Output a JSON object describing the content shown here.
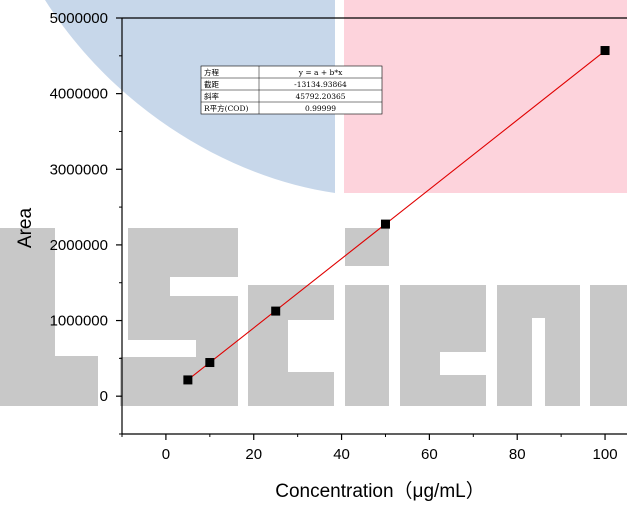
{
  "chart_data": {
    "type": "scatter",
    "xlabel": "Concentration（μg/mL）",
    "ylabel": "Area",
    "xlim": [
      -10,
      105
    ],
    "ylim": [
      -500000,
      5000000
    ],
    "x_ticks": [
      0,
      20,
      40,
      60,
      80,
      100
    ],
    "y_ticks": [
      0,
      1000000,
      2000000,
      3000000,
      4000000,
      5000000
    ],
    "x_tick_labels": [
      "0",
      "20",
      "40",
      "60",
      "80",
      "100"
    ],
    "y_tick_labels": [
      "0",
      "1000000",
      "2000000",
      "3000000",
      "4000000",
      "5000000"
    ],
    "grid": false,
    "series": [
      {
        "x": [
          5,
          10,
          25,
          50,
          100
        ],
        "y": [
          215000,
          445000,
          1125000,
          2275000,
          4570000
        ],
        "marker": "square",
        "marker_color": "#000000"
      }
    ],
    "fit_line": {
      "intercept": -13134.93864,
      "slope": 45792.20365,
      "x_range": [
        5,
        100
      ],
      "color": "#e00000"
    },
    "fit_table": {
      "rows": [
        [
          "方程",
          "y = a + b*x"
        ],
        [
          "截距",
          "-13134.93864"
        ],
        [
          "斜率",
          "45792.20365"
        ],
        [
          "R平方(COD)",
          "0.99999"
        ]
      ]
    },
    "watermark": {
      "text": "LScience",
      "colors": [
        "#c7d7ea",
        "#fdd3dc",
        "#c8c8c8"
      ]
    }
  }
}
